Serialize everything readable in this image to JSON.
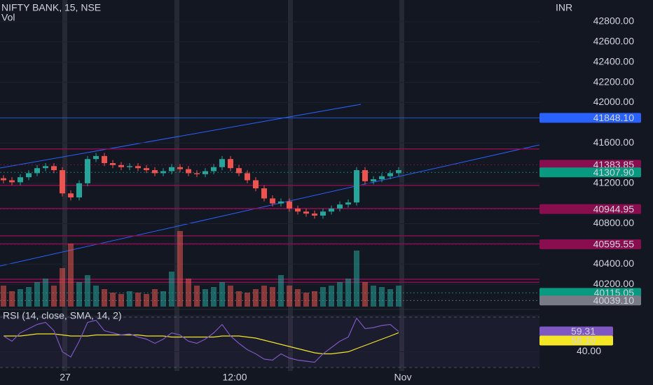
{
  "chart_data": {
    "type": "candlestick",
    "title": "NIFTY BANK, 15, NSE",
    "volume_label": "Vol",
    "rsi_label": "RSI (14, close, SMA, 14, 2)",
    "currency": "INR",
    "x_labels": [
      "27",
      "12:00",
      "Nov"
    ],
    "open": [
      41250,
      41230,
      41210,
      41260,
      41300,
      41350,
      41370,
      41330,
      41100,
      41060,
      41200,
      41440,
      41470,
      41400,
      41380,
      41360,
      41370,
      41350,
      41330,
      41300,
      41320,
      41360,
      41340,
      41300,
      41290,
      41320,
      41360,
      41440,
      41350,
      41300,
      41230,
      41150,
      41050,
      41000,
      41020,
      40950,
      40920,
      40900,
      40880,
      40920,
      40950,
      40990,
      41010,
      41330,
      41220,
      41240,
      41270,
      41300
    ],
    "high": [
      41280,
      41260,
      41290,
      41330,
      41380,
      41400,
      41400,
      41360,
      41130,
      41230,
      41470,
      41500,
      41500,
      41430,
      41410,
      41400,
      41400,
      41380,
      41360,
      41350,
      41390,
      41390,
      41370,
      41330,
      41350,
      41390,
      41470,
      41470,
      41380,
      41330,
      41260,
      41180,
      41080,
      41050,
      41050,
      40980,
      40950,
      40930,
      40950,
      40980,
      41020,
      41040,
      41360,
      41360,
      41270,
      41300,
      41330,
      41360
    ],
    "low": [
      41200,
      41180,
      41180,
      41230,
      41270,
      41320,
      41300,
      41070,
      41030,
      41030,
      41170,
      41410,
      41370,
      41350,
      41330,
      41330,
      41320,
      41300,
      41270,
      41270,
      41290,
      41310,
      41270,
      41260,
      41260,
      41290,
      41330,
      41320,
      41270,
      41200,
      41120,
      41020,
      40970,
      40970,
      40920,
      40890,
      40870,
      40850,
      40850,
      40890,
      40920,
      40960,
      40980,
      41190,
      41190,
      41210,
      41240,
      41270
    ],
    "close": [
      41230,
      41210,
      41260,
      41300,
      41350,
      41370,
      41330,
      41100,
      41060,
      41200,
      41440,
      41470,
      41400,
      41380,
      41360,
      41370,
      41350,
      41330,
      41300,
      41320,
      41360,
      41340,
      41300,
      41290,
      41320,
      41360,
      41440,
      41350,
      41300,
      41230,
      41150,
      41050,
      41000,
      41020,
      40950,
      40920,
      40900,
      40880,
      40920,
      40950,
      40990,
      41010,
      41330,
      41220,
      41240,
      41270,
      41300,
      41330
    ],
    "volume": [
      30,
      22,
      25,
      28,
      35,
      40,
      30,
      55,
      90,
      35,
      45,
      30,
      25,
      20,
      18,
      22,
      20,
      18,
      25,
      22,
      50,
      108,
      40,
      30,
      25,
      28,
      35,
      30,
      22,
      20,
      25,
      30,
      28,
      45,
      30,
      25,
      20,
      22,
      28,
      30,
      35,
      40,
      80,
      35,
      30,
      28,
      25,
      30
    ],
    "rsi": [
      55,
      50,
      58,
      62,
      66,
      68,
      60,
      40,
      35,
      50,
      68,
      70,
      60,
      58,
      56,
      57,
      54,
      52,
      48,
      52,
      58,
      56,
      50,
      48,
      52,
      58,
      66,
      55,
      48,
      42,
      38,
      33,
      32,
      38,
      34,
      32,
      31,
      30,
      38,
      44,
      50,
      54,
      72,
      62,
      63,
      65,
      66,
      59.31
    ],
    "rsi_sma": [
      55,
      55,
      55,
      56,
      57,
      57,
      57,
      56,
      55,
      55,
      55,
      56,
      56,
      56,
      56,
      56,
      56,
      55,
      55,
      55,
      54,
      54,
      54,
      54,
      54,
      54,
      55,
      55,
      55,
      54,
      53,
      51,
      49,
      47,
      45,
      43,
      41,
      39,
      38,
      38,
      39,
      40,
      43,
      46,
      49,
      52,
      55,
      58.1
    ],
    "up_color": "#26a69a",
    "down_color": "#ef5350",
    "rsi_color": "#7e57c2",
    "sma_color": "#f5e625",
    "ylim": [
      39965,
      43015
    ],
    "yticks": [
      {
        "value": 42800,
        "label": "42800.00"
      },
      {
        "value": 42600,
        "label": "42600.00"
      },
      {
        "value": 42400,
        "label": "42400.00"
      },
      {
        "value": 42200,
        "label": "42200.00"
      },
      {
        "value": 42000,
        "label": "42000.00"
      },
      {
        "value": 41600,
        "label": "41600.00"
      },
      {
        "value": 41200,
        "label": "41200.00"
      },
      {
        "value": 40800,
        "label": "40800.00"
      },
      {
        "value": 40400,
        "label": "40400.00"
      },
      {
        "value": 40200,
        "label": "40200.00"
      }
    ],
    "volume_lim": [
      0,
      120
    ],
    "rsi_lim": [
      25,
      75
    ],
    "rsi_ticks": [
      {
        "value": 40,
        "label": "40.00"
      }
    ],
    "levels": [
      41540,
      41180,
      40950,
      40680,
      40600,
      40250,
      40220
    ],
    "level_color": "#880e4f",
    "price_labels": [
      {
        "value": 41848.1,
        "label": "41848.10",
        "color": "#2962ff"
      },
      {
        "value": 41383.85,
        "label": "41383.85",
        "color": "#880e4f"
      },
      {
        "value": 41307.9,
        "label": "41307.90",
        "color": "#089981"
      },
      {
        "value": 40944.95,
        "label": "40944.95",
        "color": "#880e4f"
      },
      {
        "value": 40595.55,
        "label": "40595.55",
        "color": "#880e4f"
      },
      {
        "value": 40115.05,
        "label": "40115.05",
        "color": "#089981"
      },
      {
        "value": 40039.1,
        "label": "40039.10",
        "color": "#787b86"
      }
    ],
    "rsi_labels": [
      {
        "value": 59.31,
        "label": "59.31",
        "color": "#7e57c2"
      },
      {
        "value": 58.1,
        "label": "58.10",
        "color": "#f5e625"
      }
    ]
  }
}
